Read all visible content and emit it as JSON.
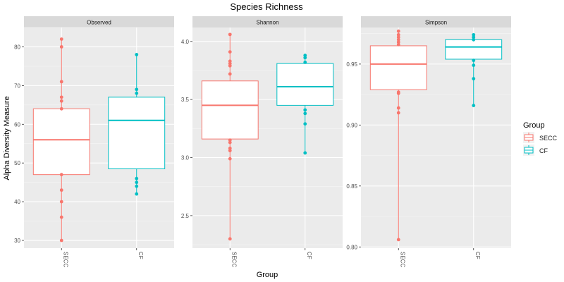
{
  "title": "Species Richness",
  "xlabel": "Group",
  "ylabel": "Alpha Diversity Measure",
  "legend": {
    "title": "Group",
    "placement": "right",
    "items": [
      {
        "label": "SECC",
        "color": "#F8766D"
      },
      {
        "label": "CF",
        "color": "#00BFC4"
      }
    ]
  },
  "chart_data": [
    {
      "type": "box",
      "panel": "Observed",
      "categories": [
        "SECC",
        "CF"
      ],
      "ylim": [
        28,
        85
      ],
      "yticks": [
        30,
        40,
        50,
        60,
        70,
        80
      ],
      "grid": true,
      "boxes": [
        {
          "group": "SECC",
          "min": 30,
          "q1": 47,
          "median": 56,
          "q3": 64,
          "max": 82
        },
        {
          "group": "CF",
          "min": 42,
          "q1": 48.5,
          "median": 61,
          "q3": 67,
          "max": 78
        }
      ],
      "points": [
        {
          "group": "SECC",
          "values": [
            82,
            80,
            71,
            67,
            66,
            64,
            47,
            43,
            40,
            36,
            30
          ]
        },
        {
          "group": "CF",
          "values": [
            78,
            69,
            68,
            46,
            45,
            44,
            42
          ]
        }
      ]
    },
    {
      "type": "box",
      "panel": "Shannon",
      "categories": [
        "SECC",
        "CF"
      ],
      "ylim": [
        2.22,
        4.12
      ],
      "yticks": [
        2.5,
        3.0,
        3.5,
        4.0
      ],
      "grid": true,
      "boxes": [
        {
          "group": "SECC",
          "min": 2.3,
          "q1": 3.16,
          "median": 3.45,
          "q3": 3.66,
          "max": 4.06
        },
        {
          "group": "CF",
          "min": 3.04,
          "q1": 3.45,
          "median": 3.61,
          "q3": 3.81,
          "max": 3.88
        }
      ],
      "points": [
        {
          "group": "SECC",
          "values": [
            4.06,
            3.91,
            3.83,
            3.81,
            3.79,
            3.72,
            3.15,
            3.13,
            3.08,
            3.06,
            2.99,
            2.3
          ]
        },
        {
          "group": "CF",
          "values": [
            3.88,
            3.86,
            3.82,
            3.41,
            3.38,
            3.29,
            3.04
          ]
        }
      ]
    },
    {
      "type": "box",
      "panel": "Simpson",
      "categories": [
        "SECC",
        "CF"
      ],
      "ylim": [
        0.799,
        0.98
      ],
      "yticks": [
        0.8,
        0.85,
        0.9,
        0.95
      ],
      "grid": true,
      "boxes": [
        {
          "group": "SECC",
          "min": 0.806,
          "q1": 0.929,
          "median": 0.95,
          "q3": 0.965,
          "max": 0.977
        },
        {
          "group": "CF",
          "min": 0.916,
          "q1": 0.954,
          "median": 0.964,
          "q3": 0.97,
          "max": 0.974
        }
      ],
      "points": [
        {
          "group": "SECC",
          "values": [
            0.977,
            0.974,
            0.972,
            0.97,
            0.968,
            0.966,
            0.927,
            0.926,
            0.914,
            0.91,
            0.806
          ]
        },
        {
          "group": "CF",
          "values": [
            0.974,
            0.972,
            0.97,
            0.953,
            0.949,
            0.938,
            0.916
          ]
        }
      ]
    }
  ]
}
